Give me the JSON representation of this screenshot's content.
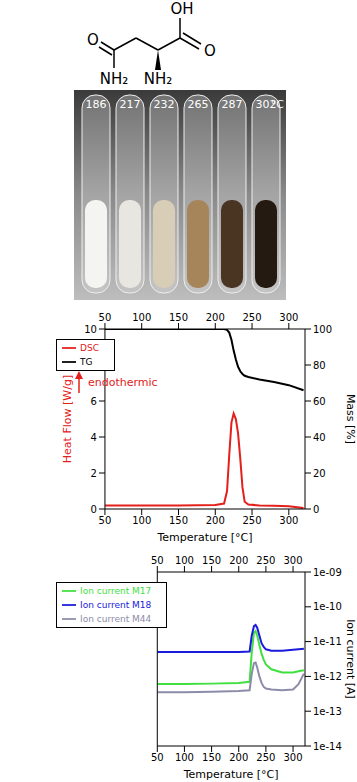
{
  "structure": {
    "atoms": [
      "OH",
      "O",
      "O",
      "NH₂",
      "NH₂"
    ]
  },
  "photo": {
    "temperatures": [
      186,
      217,
      232,
      265,
      287,
      302
    ],
    "unit": "°C"
  },
  "chart_data": [
    {
      "type": "line",
      "x_label": "Temperature [°C]",
      "y_label": "Heat Flow [W/g]",
      "y2_label": "Mass [%]",
      "annotations": [
        "endothermic"
      ],
      "legend": "upper left",
      "x": [
        50,
        100,
        150,
        200,
        212,
        216,
        219,
        222,
        225,
        228,
        231,
        234,
        237,
        240,
        245,
        260,
        280,
        300,
        320
      ],
      "xlim": [
        50,
        322
      ],
      "xticks": [
        50,
        100,
        150,
        200,
        250,
        300
      ],
      "ylim": [
        0,
        10
      ],
      "yticks": [
        0,
        2,
        4,
        6,
        8,
        10
      ],
      "y2lim": [
        0,
        100
      ],
      "y2ticks": [
        0,
        20,
        40,
        60,
        80,
        100
      ],
      "series": [
        {
          "name": "DSC",
          "color": "#e3201b",
          "values": [
            0.2,
            0.2,
            0.2,
            0.22,
            0.3,
            1.0,
            3.0,
            4.8,
            5.3,
            5.0,
            4.2,
            2.8,
            1.2,
            0.4,
            0.25,
            0.2,
            0.18,
            0.15,
            0.05
          ]
        },
        {
          "name": "TG",
          "color": "#000000",
          "axis": "y2",
          "values": [
            100,
            100,
            100,
            100,
            100,
            99.5,
            98,
            94,
            88,
            83,
            79,
            76.5,
            75,
            74,
            73.3,
            72,
            70.6,
            68.8,
            66
          ]
        }
      ]
    },
    {
      "type": "line",
      "x_label": "Temperature [°C]",
      "y2_label": "Ion current [A]",
      "legend": "upper left",
      "log": "y",
      "x": [
        50,
        100,
        150,
        200,
        220,
        224,
        228,
        231,
        234,
        238,
        242,
        246,
        250,
        260,
        280,
        300,
        310,
        320
      ],
      "xlim": [
        50,
        322
      ],
      "xticks": [
        50,
        100,
        150,
        200,
        250,
        300
      ],
      "y2lim": [
        1e-14,
        1e-09
      ],
      "y2ticks": [
        {
          "value": 1e-14,
          "label": "1e-14"
        },
        {
          "value": 1e-13,
          "label": "1e-13"
        },
        {
          "value": 1e-12,
          "label": "1e-12"
        },
        {
          "value": 1e-11,
          "label": "1e-11"
        },
        {
          "value": 1e-10,
          "label": "1e-10"
        },
        {
          "value": 1e-09,
          "label": "1e-09"
        }
      ],
      "series": [
        {
          "name": "Ion current M17",
          "color": "#3fe03f",
          "axis": "y2",
          "values": [
            6e-13,
            6e-13,
            6.2e-13,
            6.5e-13,
            7e-13,
            5e-12,
            1.8e-11,
            2e-11,
            1.5e-11,
            8e-12,
            4.5e-12,
            3e-12,
            2.2e-12,
            1.6e-12,
            1.3e-12,
            1.3e-12,
            1.4e-12,
            1.5e-12
          ]
        },
        {
          "name": "Ion current M18",
          "color": "#1a1adc",
          "axis": "y2",
          "values": [
            5e-12,
            5e-12,
            5e-12,
            5e-12,
            5.2e-12,
            1.5e-11,
            2.8e-11,
            3e-11,
            2.5e-11,
            1.5e-11,
            9e-12,
            7e-12,
            6e-12,
            5.5e-12,
            5.5e-12,
            5.8e-12,
            6e-12,
            6.2e-12
          ]
        },
        {
          "name": "Ion current M44",
          "color": "#8c8ca8",
          "axis": "y2",
          "values": [
            3.5e-13,
            3.5e-13,
            3.6e-13,
            3.8e-13,
            4e-13,
            1.2e-12,
            2.4e-12,
            2.5e-12,
            1.8e-12,
            1e-12,
            6.5e-13,
            5e-13,
            4.5e-13,
            4.2e-13,
            4e-13,
            4.2e-13,
            6e-13,
            1.2e-12
          ]
        }
      ]
    }
  ]
}
